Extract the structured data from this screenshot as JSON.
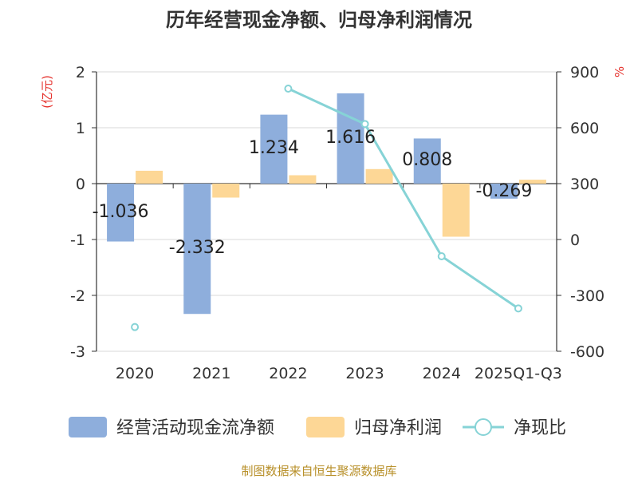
{
  "chart_data": {
    "type": "bar",
    "title": "历年经营现金净额、归母净利润情况",
    "categories": [
      "2020",
      "2021",
      "2022",
      "2023",
      "2024",
      "2025Q1-Q3"
    ],
    "y_left": {
      "unit": "(亿元)",
      "ticks": [
        2,
        1,
        0,
        -1,
        -2,
        -3
      ],
      "ylim": [
        -3,
        2
      ]
    },
    "y_right": {
      "unit": "%",
      "ticks": [
        900,
        600,
        300,
        0,
        -300,
        -600
      ],
      "ylim": [
        -600,
        900
      ]
    },
    "series": [
      {
        "name": "经营活动现金流净额",
        "type": "bar",
        "axis": "left",
        "color": "#8eaedc",
        "values": [
          -1.036,
          -2.332,
          1.234,
          1.616,
          0.808,
          -0.269
        ],
        "labels": [
          "-1.036",
          "-2.332",
          "1.234",
          "1.616",
          "0.808",
          "-0.269"
        ]
      },
      {
        "name": "归母净利润",
        "type": "bar",
        "axis": "left",
        "color": "#fdd796",
        "values": [
          0.23,
          -0.25,
          0.15,
          0.26,
          -0.95,
          0.07
        ]
      },
      {
        "name": "净现比",
        "type": "line",
        "axis": "right",
        "color": "#86d3d6",
        "values": [
          -470,
          null,
          810,
          620,
          -90,
          -370
        ]
      }
    ],
    "grid": true,
    "legend": "bottom"
  },
  "source": "制图数据来自恒生聚源数据库"
}
